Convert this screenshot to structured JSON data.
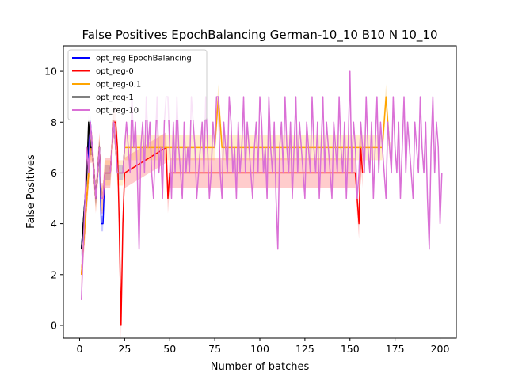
{
  "chart_data": {
    "type": "line",
    "title": "False Positives EpochBalancing German-10_10 B10 N 10_10",
    "xlabel": "Number of batches",
    "ylabel": "False Positives",
    "xlim": [
      -9,
      209
    ],
    "ylim": [
      -0.5,
      11
    ],
    "xticks": [
      0,
      25,
      50,
      75,
      100,
      125,
      150,
      175,
      200
    ],
    "yticks": [
      0,
      2,
      4,
      6,
      8,
      10
    ],
    "legend_position": "upper left",
    "grid": false,
    "series": [
      {
        "name": "opt_reg EpochBalancing",
        "color": "#0000ff",
        "x": [
          1,
          2,
          3,
          4,
          5,
          6,
          7,
          8,
          9,
          10,
          11,
          12,
          13,
          14,
          15,
          16,
          17,
          18,
          19,
          20,
          21,
          22,
          23,
          24,
          25
        ],
        "values": [
          3,
          4,
          5,
          6,
          7,
          8,
          7,
          6,
          5,
          6,
          7,
          4,
          4,
          6,
          6,
          6,
          6,
          7,
          8,
          7,
          6,
          6,
          6,
          6,
          7
        ],
        "band": 0.3
      },
      {
        "name": "opt_reg-0",
        "color": "#ff0000",
        "x": [
          1,
          2,
          3,
          4,
          5,
          6,
          7,
          8,
          9,
          10,
          11,
          12,
          13,
          14,
          15,
          16,
          17,
          18,
          19,
          20,
          21,
          22,
          23,
          24,
          25,
          48,
          49,
          50,
          51,
          52,
          153,
          154,
          155,
          156,
          157
        ],
        "values": [
          2,
          3,
          4,
          5,
          6,
          7,
          7,
          6,
          5,
          6,
          7,
          5,
          5,
          6,
          6,
          6,
          6,
          7,
          8,
          8,
          7,
          4,
          0,
          4,
          6,
          7,
          5,
          6,
          6,
          6,
          6,
          5,
          4,
          7,
          6
        ],
        "band": 0.6
      },
      {
        "name": "opt_reg-0.1",
        "color": "#ffa500",
        "x": [
          1,
          2,
          3,
          4,
          5,
          6,
          7,
          8,
          9,
          10,
          11,
          12,
          13,
          14,
          15,
          16,
          17,
          18,
          19,
          20,
          21,
          22,
          23,
          24,
          25,
          75,
          76,
          77,
          78,
          79,
          168,
          169,
          170,
          171,
          172
        ],
        "values": [
          2,
          3,
          4,
          5,
          6,
          7,
          7,
          6,
          5,
          6,
          7,
          5,
          5,
          6,
          6,
          6,
          6,
          7,
          8,
          7,
          6,
          6,
          6,
          6,
          7,
          7,
          8,
          9,
          8,
          7,
          7,
          8,
          9,
          8,
          7
        ],
        "band": 0.5
      },
      {
        "name": "opt_reg-1",
        "color": "#000000",
        "x": [
          1,
          2,
          3,
          4,
          5,
          6,
          7,
          8,
          9,
          10,
          11,
          12
        ],
        "values": [
          3,
          4,
          5,
          6,
          8,
          7,
          7,
          6,
          5,
          6,
          7,
          5
        ],
        "band": 0.3
      },
      {
        "name": "opt_reg-10",
        "color": "#da70d6",
        "x": [
          1,
          2,
          3,
          4,
          5,
          6,
          7,
          8,
          9,
          10,
          11,
          12,
          13,
          14,
          15,
          16,
          17,
          18,
          19,
          20,
          21,
          22,
          23,
          24,
          25,
          26,
          27,
          28,
          29,
          30,
          31,
          32,
          33,
          34,
          35,
          36,
          37,
          38,
          39,
          40,
          41,
          42,
          43,
          44,
          45,
          46,
          47,
          48,
          49,
          50,
          51,
          52,
          53,
          54,
          55,
          56,
          57,
          58,
          59,
          60,
          61,
          62,
          63,
          64,
          65,
          66,
          67,
          68,
          69,
          70,
          71,
          72,
          73,
          74,
          75,
          76,
          77,
          78,
          79,
          80,
          81,
          82,
          83,
          84,
          85,
          86,
          87,
          88,
          89,
          90,
          91,
          92,
          93,
          94,
          95,
          96,
          97,
          98,
          99,
          100,
          101,
          102,
          103,
          104,
          105,
          106,
          107,
          108,
          109,
          110,
          111,
          112,
          113,
          114,
          115,
          116,
          117,
          118,
          119,
          120,
          121,
          122,
          123,
          124,
          125,
          126,
          127,
          128,
          129,
          130,
          131,
          132,
          133,
          134,
          135,
          136,
          137,
          138,
          139,
          140,
          141,
          142,
          143,
          144,
          145,
          146,
          147,
          148,
          149,
          150,
          151,
          152,
          153,
          154,
          155,
          156,
          157,
          158,
          159,
          160,
          161,
          162,
          163,
          164,
          165,
          166,
          167,
          168,
          169,
          170,
          171,
          172,
          173,
          174,
          175,
          176,
          177,
          178,
          179,
          180,
          181,
          182,
          183,
          184,
          185,
          186,
          187,
          188,
          189,
          190,
          191,
          192,
          193,
          194,
          195,
          196,
          197,
          198,
          199,
          200,
          201
        ],
        "values": [
          1,
          3,
          5,
          7,
          6,
          8,
          7,
          6,
          5,
          6,
          7,
          5,
          5,
          6,
          6,
          6,
          6,
          7,
          8,
          7,
          6,
          6,
          6,
          6,
          7,
          8,
          7,
          6,
          9,
          7,
          8,
          6,
          3,
          7,
          8,
          6,
          9,
          7,
          8,
          6,
          5,
          7,
          9,
          6,
          7,
          5,
          8,
          9,
          9,
          7,
          5,
          8,
          6,
          9,
          7,
          6,
          5,
          8,
          6,
          7,
          6,
          9,
          8,
          7,
          5,
          6,
          7,
          8,
          6,
          9,
          7,
          5,
          6,
          8,
          7,
          9,
          9,
          6,
          5,
          8,
          7,
          6,
          9,
          8,
          6,
          7,
          5,
          8,
          6,
          7,
          9,
          6,
          8,
          7,
          6,
          5,
          7,
          8,
          6,
          9,
          8,
          6,
          7,
          5,
          9,
          7,
          6,
          8,
          5,
          3,
          7,
          8,
          6,
          9,
          7,
          6,
          8,
          5,
          7,
          9,
          6,
          8,
          7,
          6,
          5,
          8,
          7,
          6,
          9,
          7,
          6,
          8,
          5,
          7,
          9,
          6,
          8,
          7,
          6,
          5,
          8,
          7,
          6,
          9,
          7,
          6,
          8,
          5,
          7,
          10,
          6,
          8,
          7,
          5,
          6,
          8,
          7,
          6,
          9,
          7,
          6,
          8,
          5,
          7,
          9,
          6,
          8,
          7,
          6,
          5,
          8,
          7,
          6,
          9,
          7,
          6,
          8,
          5,
          7,
          9,
          6,
          8,
          7,
          6,
          5,
          8,
          7,
          6,
          9,
          7,
          6,
          8,
          5,
          3,
          7,
          9,
          6,
          8,
          7,
          4,
          6
        ],
        "band": 0.0
      }
    ]
  }
}
